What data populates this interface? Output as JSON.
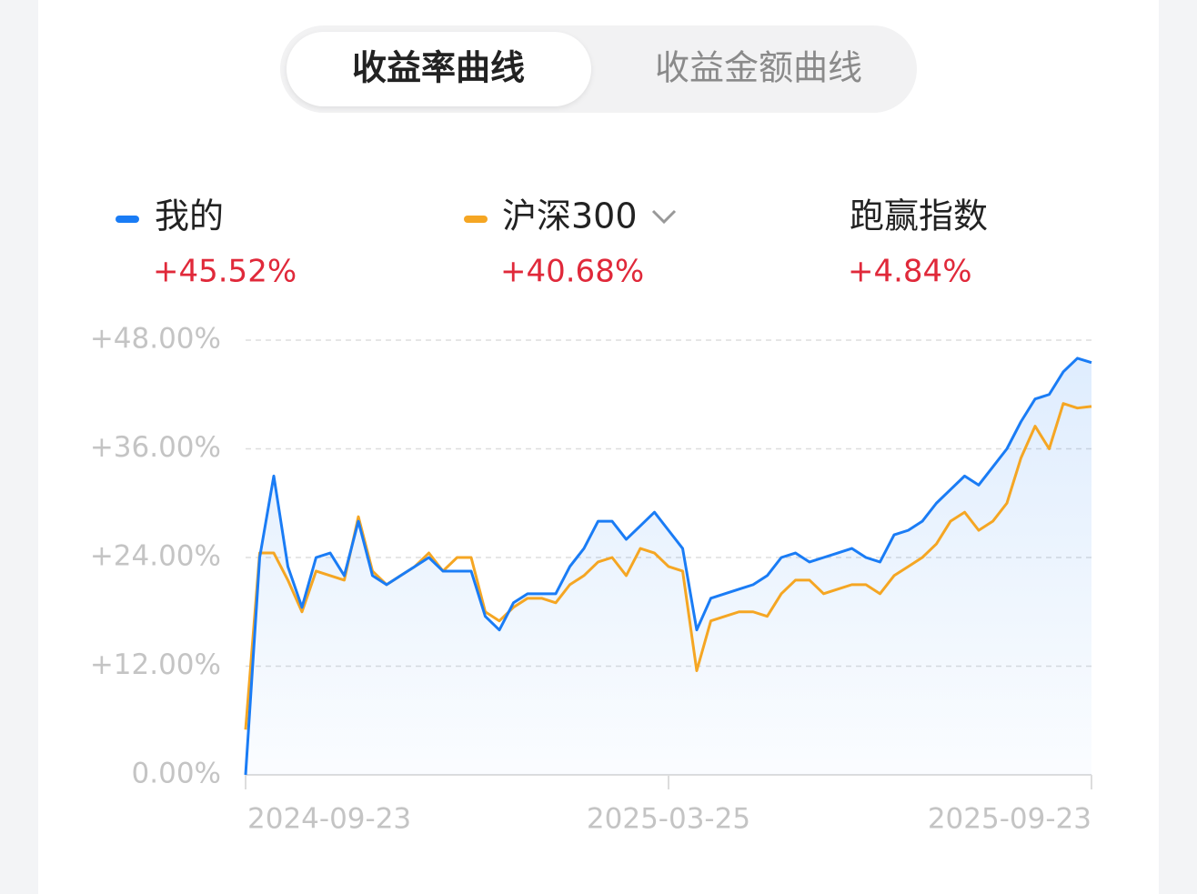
{
  "tabs": [
    "收益率曲线",
    "收益金额曲线"
  ],
  "outperform": {
    "label": "跑赢指数",
    "value": "+4.84%"
  },
  "chart_data": {
    "type": "line",
    "categories": [
      "2024-09-23",
      null,
      null,
      null,
      null,
      null,
      null,
      null,
      null,
      null,
      null,
      null,
      null,
      null,
      null,
      null,
      null,
      null,
      null,
      null,
      null,
      null,
      null,
      null,
      null,
      null,
      null,
      null,
      null,
      null,
      "2025-03-25",
      null,
      null,
      null,
      null,
      null,
      null,
      null,
      null,
      null,
      null,
      null,
      null,
      null,
      null,
      null,
      null,
      null,
      null,
      null,
      null,
      null,
      null,
      null,
      null,
      null,
      null,
      null,
      null,
      null,
      "2025-09-23"
    ],
    "series": [
      {
        "name": "我的",
        "return_label": "+45.52%",
        "color": "#1a7cf5",
        "values": [
          0,
          24,
          33,
          23,
          18.5,
          24,
          24.5,
          22,
          28,
          22,
          21,
          22,
          23,
          24,
          22.5,
          22.5,
          22.5,
          17.5,
          16,
          19,
          20,
          20,
          20,
          23,
          25,
          28,
          28,
          26,
          27.5,
          29,
          27,
          25,
          16,
          19.5,
          20,
          20.5,
          21,
          22,
          24,
          24.5,
          23.5,
          24,
          24.5,
          25,
          24,
          23.5,
          26.5,
          27,
          28,
          30,
          31.5,
          33,
          32,
          34,
          36,
          39,
          41.5,
          42,
          44.5,
          46,
          45.52
        ]
      },
      {
        "name": "沪深300",
        "return_label": "+40.68%",
        "color": "#f5a623",
        "values": [
          5,
          24.5,
          24.5,
          21.5,
          18,
          22.5,
          22,
          21.5,
          28.5,
          22.5,
          21,
          22,
          23,
          24.5,
          22.5,
          24,
          24,
          18,
          17,
          18.5,
          19.5,
          19.5,
          19,
          21,
          22,
          23.5,
          24,
          22,
          25,
          24.5,
          23,
          22.5,
          11.5,
          17,
          17.5,
          18,
          18,
          17.5,
          20,
          21.5,
          21.5,
          20,
          20.5,
          21,
          21,
          20,
          22,
          23,
          24,
          25.5,
          28,
          29,
          27,
          28,
          30,
          35,
          38.5,
          36,
          41,
          40.5,
          40.68
        ]
      }
    ],
    "ylim": [
      0,
      48
    ],
    "yticks": [
      {
        "value": 0,
        "label": "0.00%"
      },
      {
        "value": 12,
        "label": "+12.00%"
      },
      {
        "value": 24,
        "label": "+24.00%"
      },
      {
        "value": 36,
        "label": "+36.00%"
      },
      {
        "value": 48,
        "label": "+48.00%"
      }
    ],
    "grid": true
  }
}
